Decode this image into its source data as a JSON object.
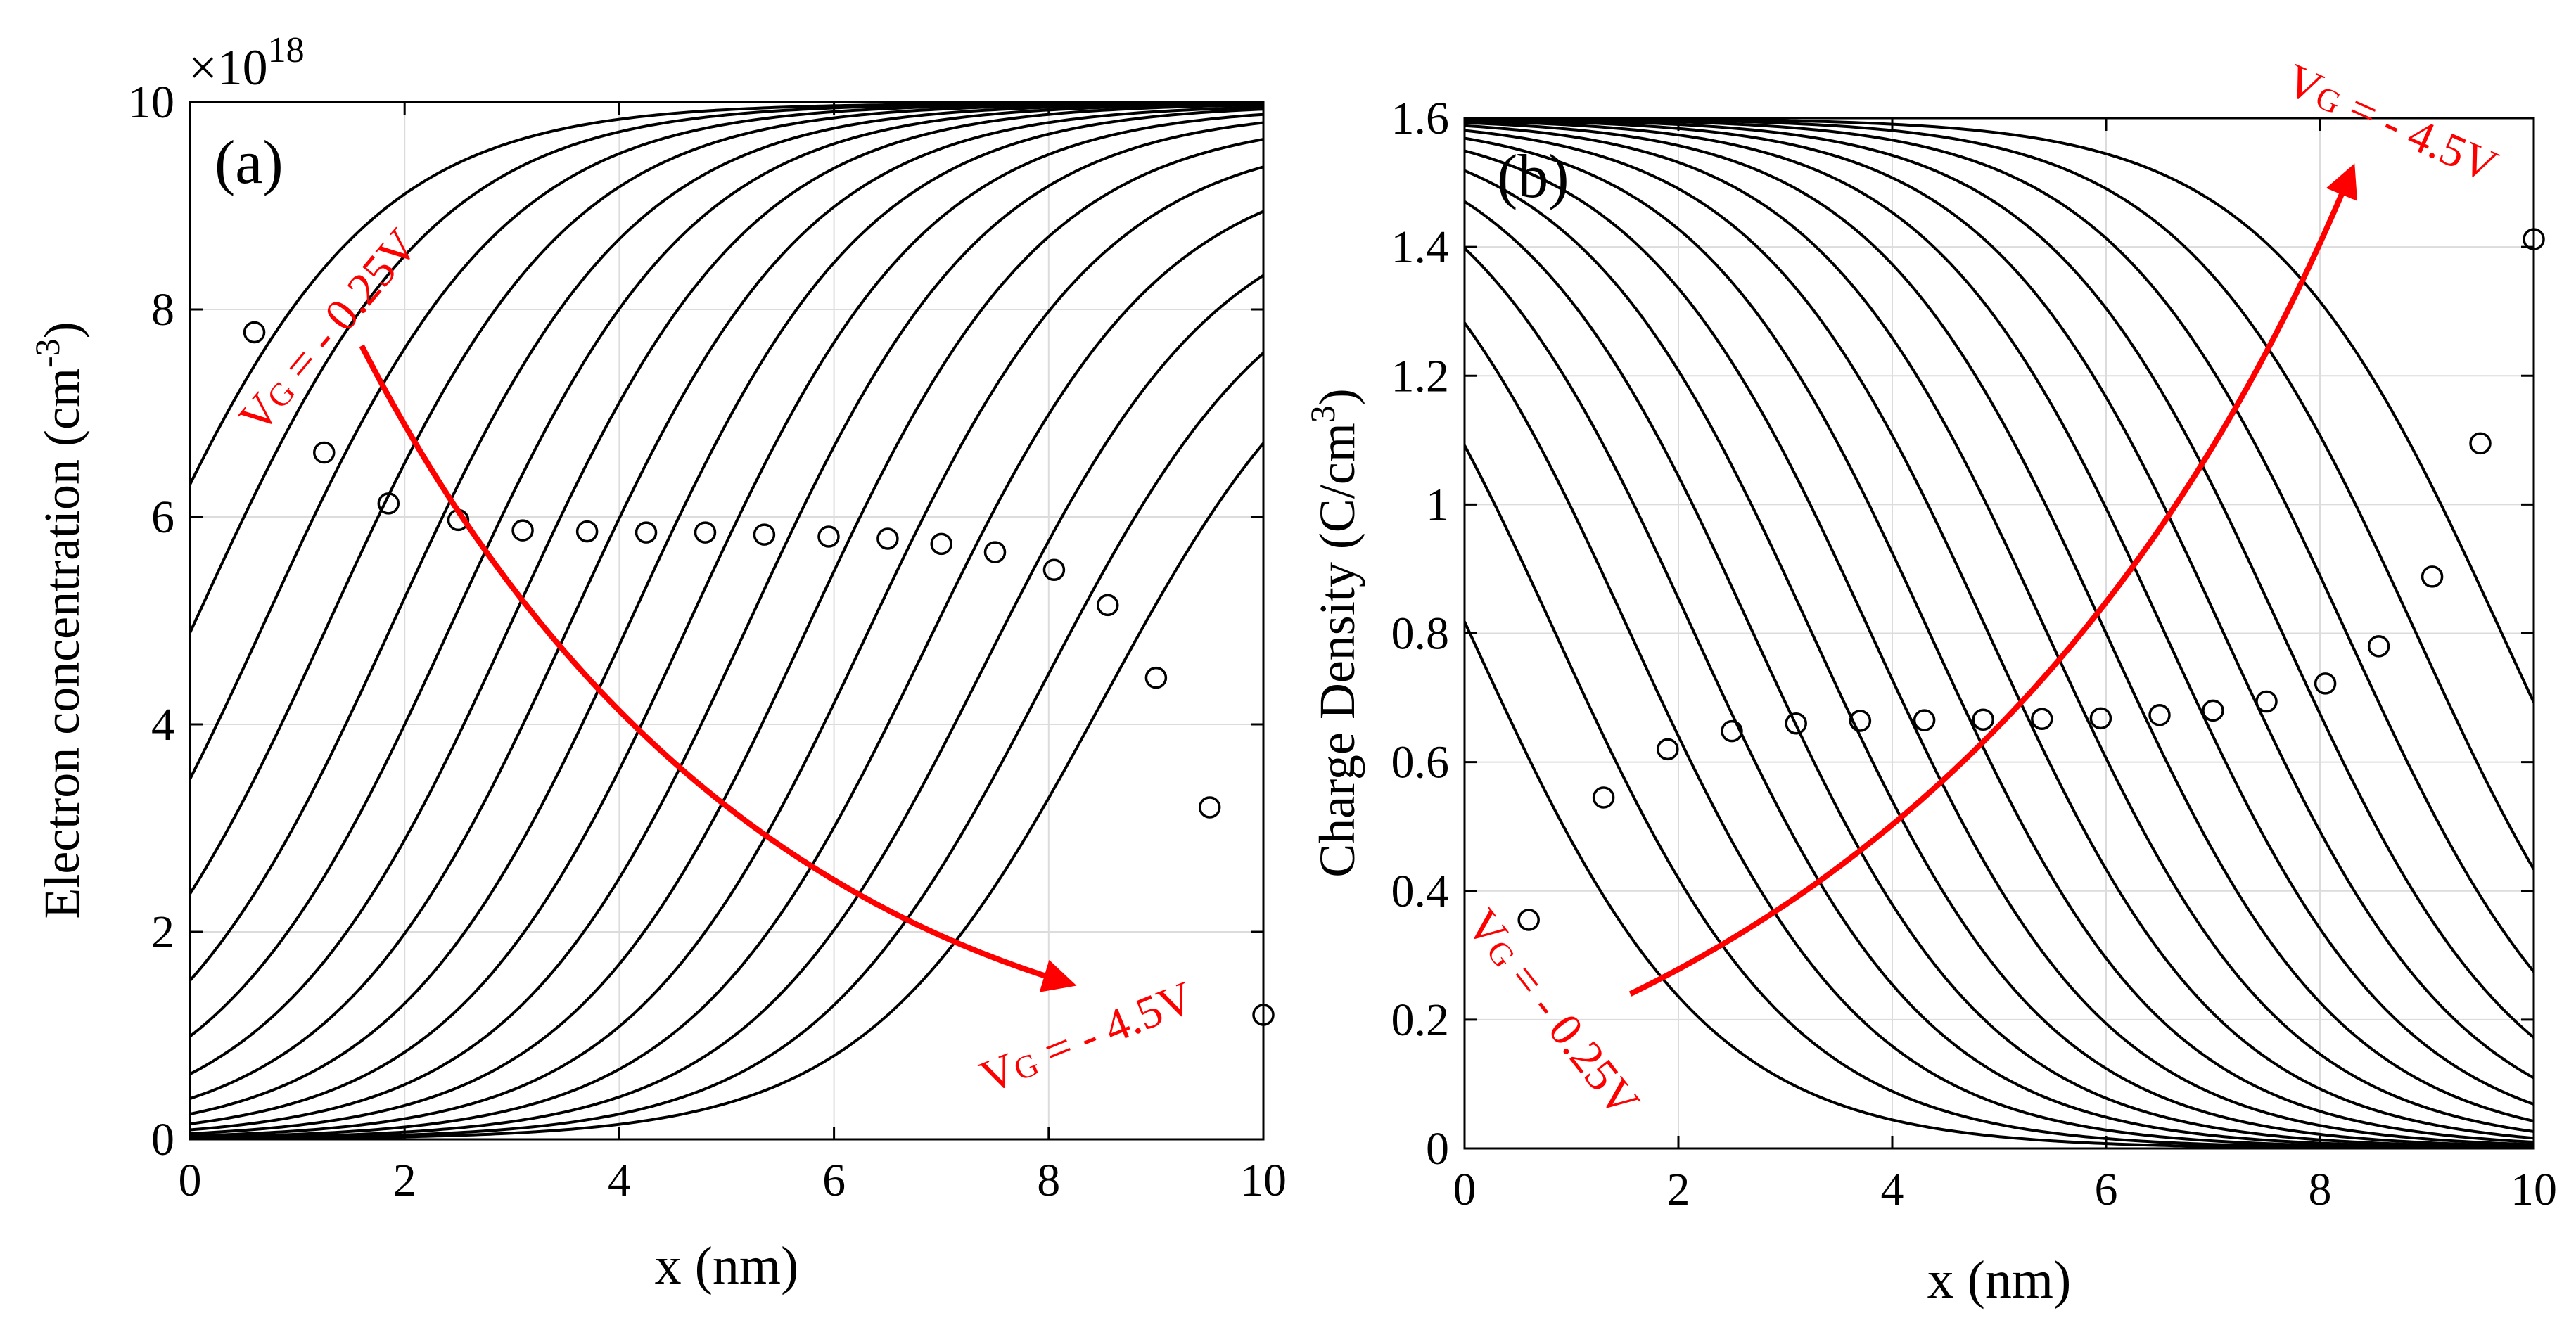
{
  "chart_data": [
    {
      "type": "line",
      "panel_label": "(a)",
      "title": "",
      "xlabel": "x (nm)",
      "ylabel_main": "Electron concentration (cm",
      "ylabel_sup": "-3",
      "ylabel_close": ")",
      "exponent_prefix": "×10",
      "exponent_power": "18",
      "xlim": [
        0,
        10
      ],
      "ylim": [
        0,
        10
      ],
      "xticks": [
        0,
        2,
        4,
        6,
        8,
        10
      ],
      "yticks": [
        0,
        2,
        4,
        6,
        8,
        10
      ],
      "xtick_labels": [
        "0",
        "2",
        "4",
        "6",
        "8",
        "10"
      ],
      "ytick_labels": [
        "0",
        "2",
        "4",
        "6",
        "8",
        "10"
      ],
      "grid": true,
      "curve_family": "rising",
      "series_count": 17,
      "series_names": [
        "VG = -0.25V",
        "",
        "",
        "",
        "",
        "",
        "",
        "",
        "",
        "",
        "",
        "",
        "",
        "",
        "",
        "",
        "VG = -4.5V"
      ],
      "series_params": {
        "plateau": [
          9.99,
          9.99,
          9.99,
          9.99,
          9.99,
          9.99,
          9.99,
          9.98,
          9.98,
          9.96,
          9.93,
          9.85,
          9.71,
          9.47,
          9.13,
          8.78,
          8.45
        ],
        "center_x": [
          -0.6,
          0.05,
          0.7,
          1.3,
          1.9,
          2.45,
          3.0,
          3.55,
          4.1,
          4.65,
          5.2,
          5.75,
          6.3,
          6.85,
          7.4,
          7.95,
          8.5
        ],
        "slope_k": [
          0.9,
          0.9,
          0.9,
          0.9,
          0.9,
          0.9,
          0.9,
          0.9,
          0.9,
          0.9,
          0.9,
          0.9,
          0.9,
          0.9,
          0.9,
          0.9,
          0.9
        ]
      },
      "markers": {
        "x": [
          0.6,
          1.25,
          1.85,
          2.5,
          3.1,
          3.7,
          4.25,
          4.8,
          5.35,
          5.95,
          6.5,
          7.0,
          7.5,
          8.05,
          8.55,
          9.0,
          9.5,
          10.0
        ],
        "y": [
          7.78,
          6.62,
          6.13,
          5.97,
          5.87,
          5.86,
          5.85,
          5.85,
          5.83,
          5.81,
          5.79,
          5.74,
          5.66,
          5.49,
          5.15,
          4.45,
          3.2,
          1.2
        ]
      },
      "annotations": [
        {
          "text_v": "V",
          "text_sub": "G",
          "text_rest": " = - 0.25V",
          "x": 0.7,
          "y": 5.7,
          "rotation": -50
        },
        {
          "text_v": "V",
          "text_sub": "G",
          "text_rest": " = - 4.5V",
          "x": 7.55,
          "y": 0.4,
          "rotation": -22
        }
      ],
      "arrow": {
        "from": [
          1.6,
          7.65
        ],
        "to": [
          8.2,
          1.5
        ],
        "bend": [
          4.0,
          2.8
        ],
        "color": "#ff0000"
      }
    },
    {
      "type": "line",
      "panel_label": "(b)",
      "title": "",
      "xlabel": "x (nm)",
      "ylabel_main": "Charge Density (C/cm",
      "ylabel_sup": "3",
      "ylabel_close": ")",
      "xlim": [
        0,
        10
      ],
      "ylim": [
        0,
        1.6
      ],
      "xticks": [
        0,
        2,
        4,
        6,
        8,
        10
      ],
      "yticks": [
        0,
        0.2,
        0.4,
        0.6,
        0.8,
        1.0,
        1.2,
        1.4,
        1.6
      ],
      "xtick_labels": [
        "0",
        "2",
        "4",
        "6",
        "8",
        "10"
      ],
      "ytick_labels": [
        "0",
        "0.2",
        "0.4",
        "0.6",
        "0.8",
        "1",
        "1.2",
        "1.4",
        "1.6"
      ],
      "grid": true,
      "curve_family": "falling",
      "series_count": 17,
      "series_names": [
        "VG = -0.25V",
        "",
        "",
        "",
        "",
        "",
        "",
        "",
        "",
        "",
        "",
        "",
        "",
        "",
        "",
        "",
        "VG = -4.5V"
      ],
      "series_params": {
        "plateau": [
          1.6,
          1.6,
          1.6,
          1.6,
          1.6,
          1.6,
          1.6,
          1.6,
          1.6,
          1.6,
          1.6,
          1.6,
          1.6,
          1.6,
          1.6,
          1.6,
          1.6
        ],
        "center_x": [
          0.05,
          0.85,
          1.55,
          2.15,
          2.7,
          3.25,
          3.8,
          4.35,
          4.9,
          5.45,
          6.0,
          6.55,
          7.1,
          7.65,
          8.25,
          8.9,
          9.7
        ],
        "slope_k": [
          0.9,
          0.9,
          0.9,
          0.9,
          0.9,
          0.9,
          0.9,
          0.9,
          0.9,
          0.9,
          0.9,
          0.9,
          0.9,
          0.9,
          0.9,
          0.9,
          0.9
        ]
      },
      "markers": {
        "x": [
          0.6,
          1.3,
          1.9,
          2.5,
          3.1,
          3.7,
          4.3,
          4.85,
          5.4,
          5.95,
          6.5,
          7.0,
          7.5,
          8.05,
          8.55,
          9.05,
          9.5,
          10.0
        ],
        "y": [
          0.355,
          0.545,
          0.62,
          0.648,
          0.66,
          0.664,
          0.665,
          0.666,
          0.667,
          0.668,
          0.673,
          0.68,
          0.694,
          0.722,
          0.78,
          0.888,
          1.095,
          1.412
        ]
      },
      "annotations": [
        {
          "text_v": "V",
          "text_sub": "G",
          "text_rest": " = - 0.25V",
          "x": 0.0,
          "y": 0.37,
          "rotation": 52
        },
        {
          "text_v": "V",
          "text_sub": "G",
          "text_rest": " = - 4.5V",
          "x": 7.7,
          "y": 1.66,
          "rotation": 24
        }
      ],
      "arrow": {
        "from": [
          1.55,
          0.24
        ],
        "to": [
          8.3,
          1.52
        ],
        "bend": [
          6.0,
          0.6
        ],
        "color": "#ff0000"
      }
    }
  ]
}
